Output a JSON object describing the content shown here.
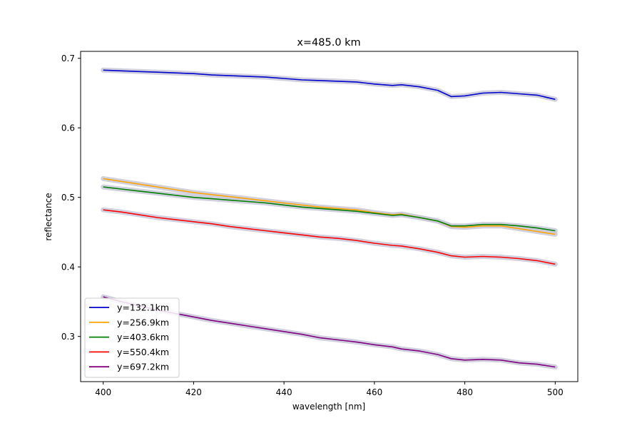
{
  "chart_data": {
    "type": "line",
    "title": "x=485.0 km",
    "xlabel": "wavelength [nm]",
    "ylabel": "reflectance",
    "xlim": [
      395,
      505
    ],
    "ylim": [
      0.235,
      0.71
    ],
    "xticks": [
      400,
      420,
      440,
      460,
      480,
      500
    ],
    "yticks": [
      0.3,
      0.4,
      0.5,
      0.6,
      0.7
    ],
    "xtick_labels": [
      "400",
      "420",
      "440",
      "460",
      "480",
      "500"
    ],
    "ytick_labels": [
      "0.3",
      "0.4",
      "0.5",
      "0.6",
      "0.7"
    ],
    "grid": false,
    "legend_position": "lower-left",
    "band_color": "#c8c8d8",
    "series": [
      {
        "name": "y=132.1km",
        "color": "#0000cc",
        "x": [
          400,
          404,
          408,
          412,
          416,
          420,
          424,
          428,
          432,
          436,
          440,
          444,
          448,
          452,
          456,
          460,
          464,
          466,
          470,
          474,
          477,
          480,
          484,
          488,
          492,
          496,
          500
        ],
        "values": [
          0.683,
          0.682,
          0.681,
          0.68,
          0.679,
          0.678,
          0.676,
          0.675,
          0.674,
          0.673,
          0.671,
          0.669,
          0.668,
          0.667,
          0.666,
          0.663,
          0.661,
          0.662,
          0.659,
          0.654,
          0.645,
          0.646,
          0.65,
          0.651,
          0.649,
          0.647,
          0.641
        ]
      },
      {
        "name": "y=256.9km",
        "color": "#ffa500",
        "x": [
          400,
          404,
          408,
          412,
          416,
          420,
          424,
          428,
          432,
          436,
          440,
          444,
          448,
          452,
          456,
          460,
          464,
          466,
          470,
          474,
          477,
          480,
          484,
          488,
          492,
          496,
          500
        ],
        "values": [
          0.527,
          0.523,
          0.519,
          0.515,
          0.511,
          0.507,
          0.504,
          0.501,
          0.498,
          0.495,
          0.492,
          0.489,
          0.486,
          0.484,
          0.482,
          0.478,
          0.475,
          0.476,
          0.471,
          0.466,
          0.458,
          0.457,
          0.459,
          0.459,
          0.455,
          0.451,
          0.447
        ]
      },
      {
        "name": "y=403.6km",
        "color": "#008000",
        "x": [
          400,
          404,
          408,
          412,
          416,
          420,
          424,
          428,
          432,
          436,
          440,
          444,
          448,
          452,
          456,
          460,
          464,
          466,
          470,
          474,
          477,
          480,
          484,
          488,
          492,
          496,
          500
        ],
        "values": [
          0.515,
          0.512,
          0.509,
          0.506,
          0.503,
          0.5,
          0.498,
          0.496,
          0.494,
          0.492,
          0.489,
          0.486,
          0.484,
          0.482,
          0.48,
          0.477,
          0.474,
          0.475,
          0.471,
          0.466,
          0.459,
          0.459,
          0.461,
          0.461,
          0.459,
          0.456,
          0.452
        ]
      },
      {
        "name": "y=550.4km",
        "color": "#ff0000",
        "x": [
          400,
          404,
          408,
          412,
          416,
          420,
          424,
          428,
          432,
          436,
          440,
          444,
          448,
          452,
          456,
          460,
          464,
          466,
          470,
          474,
          477,
          480,
          484,
          488,
          492,
          496,
          500
        ],
        "values": [
          0.482,
          0.479,
          0.475,
          0.471,
          0.468,
          0.465,
          0.462,
          0.458,
          0.455,
          0.452,
          0.449,
          0.446,
          0.443,
          0.441,
          0.438,
          0.434,
          0.431,
          0.43,
          0.426,
          0.421,
          0.416,
          0.414,
          0.415,
          0.414,
          0.412,
          0.409,
          0.404
        ]
      },
      {
        "name": "y=697.2km",
        "color": "#800080",
        "x": [
          400,
          404,
          408,
          412,
          416,
          420,
          424,
          428,
          432,
          436,
          440,
          444,
          448,
          452,
          456,
          460,
          464,
          466,
          470,
          474,
          477,
          480,
          484,
          488,
          492,
          496,
          500
        ],
        "values": [
          0.357,
          0.35,
          0.344,
          0.338,
          0.333,
          0.328,
          0.323,
          0.319,
          0.315,
          0.311,
          0.307,
          0.303,
          0.298,
          0.295,
          0.292,
          0.288,
          0.285,
          0.282,
          0.279,
          0.274,
          0.268,
          0.266,
          0.267,
          0.266,
          0.262,
          0.26,
          0.256
        ]
      }
    ]
  }
}
